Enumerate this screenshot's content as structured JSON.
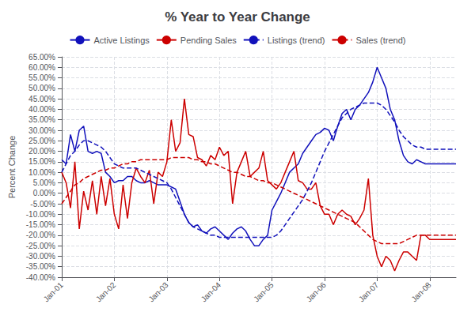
{
  "chart_data": {
    "type": "line",
    "title": "% Year to Year Change",
    "ylabel": "Percent Change",
    "categories": [
      "Jan-01",
      null,
      null,
      null,
      null,
      null,
      null,
      null,
      null,
      null,
      null,
      null,
      "Jan-02",
      null,
      null,
      null,
      null,
      null,
      null,
      null,
      null,
      null,
      null,
      null,
      "Jan-03",
      null,
      null,
      null,
      null,
      null,
      null,
      null,
      null,
      null,
      null,
      null,
      "Jan-04",
      null,
      null,
      null,
      null,
      null,
      null,
      null,
      null,
      null,
      null,
      null,
      "Jan-05",
      null,
      null,
      null,
      null,
      null,
      null,
      null,
      null,
      null,
      null,
      null,
      "Jan-06",
      null,
      null,
      null,
      null,
      null,
      null,
      null,
      null,
      null,
      null,
      null,
      "Jan-07",
      null,
      null,
      null,
      null,
      null,
      null,
      null,
      null,
      null,
      null,
      null,
      "Jan-08",
      null,
      null,
      null,
      null,
      null,
      null
    ],
    "series": [
      {
        "name": "Active Listings",
        "color": "#1111bb",
        "line_style": "solid",
        "values": [
          0.16,
          0.14,
          0.28,
          0.2,
          0.3,
          0.32,
          0.2,
          0.19,
          0.2,
          0.19,
          0.1,
          0.08,
          0.05,
          0.06,
          0.06,
          0.08,
          0.08,
          0.06,
          0.05,
          0.05,
          0.06,
          0.05,
          0.04,
          0.04,
          0.04,
          0.03,
          0.02,
          -0.04,
          -0.1,
          -0.14,
          -0.16,
          -0.15,
          -0.18,
          -0.19,
          -0.17,
          -0.16,
          -0.18,
          -0.2,
          -0.22,
          -0.19,
          -0.17,
          -0.16,
          -0.18,
          -0.22,
          -0.25,
          -0.25,
          -0.22,
          -0.2,
          -0.08,
          -0.04,
          0.0,
          0.05,
          0.1,
          0.12,
          0.14,
          0.19,
          0.22,
          0.25,
          0.28,
          0.29,
          0.31,
          0.3,
          0.25,
          0.32,
          0.38,
          0.4,
          0.35,
          0.4,
          0.42,
          0.45,
          0.48,
          0.53,
          0.6,
          0.55,
          0.5,
          0.4,
          0.35,
          0.25,
          0.18,
          0.15,
          0.14,
          0.16,
          0.15,
          0.14,
          0.14,
          0.14,
          0.14,
          0.14,
          0.14,
          0.14,
          0.14
        ]
      },
      {
        "name": "Pending Sales",
        "color": "#cc0000",
        "line_style": "solid",
        "values": [
          0.1,
          0.05,
          -0.07,
          0.15,
          -0.17,
          0.01,
          -0.08,
          0.06,
          -0.1,
          0.08,
          -0.06,
          0.07,
          -0.1,
          -0.17,
          0.04,
          -0.12,
          0.05,
          0.12,
          0.08,
          0.05,
          0.11,
          -0.05,
          0.1,
          0.08,
          0.15,
          0.35,
          0.2,
          0.24,
          0.45,
          0.28,
          0.27,
          0.17,
          0.16,
          0.13,
          0.18,
          0.16,
          0.22,
          0.18,
          0.2,
          -0.05,
          0.1,
          0.15,
          0.2,
          0.08,
          0.1,
          0.12,
          0.2,
          0.06,
          0.04,
          0.02,
          0.05,
          0.1,
          0.15,
          0.2,
          0.06,
          0.05,
          0.02,
          0.02,
          0.05,
          -0.06,
          -0.1,
          -0.1,
          -0.15,
          -0.1,
          -0.08,
          -0.1,
          -0.11,
          -0.15,
          -0.12,
          -0.08,
          0.07,
          -0.2,
          -0.3,
          -0.35,
          -0.3,
          -0.32,
          -0.37,
          -0.32,
          -0.28,
          -0.28,
          -0.3,
          -0.32,
          -0.2,
          -0.2,
          -0.22,
          -0.22,
          -0.22,
          -0.22,
          -0.22,
          -0.22,
          -0.22
        ]
      },
      {
        "name": "Listings (trend)",
        "color": "#1111bb",
        "line_style": "dashed",
        "values": [
          0.1,
          0.14,
          0.18,
          0.2,
          0.23,
          0.25,
          0.25,
          0.24,
          0.23,
          0.22,
          0.2,
          0.17,
          0.14,
          0.13,
          0.12,
          0.12,
          0.12,
          0.12,
          0.11,
          0.1,
          0.09,
          0.08,
          0.07,
          0.06,
          0.05,
          0.02,
          -0.02,
          -0.06,
          -0.1,
          -0.14,
          -0.16,
          -0.17,
          -0.18,
          -0.19,
          -0.2,
          -0.2,
          -0.21,
          -0.21,
          -0.21,
          -0.21,
          -0.21,
          -0.21,
          -0.21,
          -0.21,
          -0.21,
          -0.21,
          -0.21,
          -0.21,
          -0.21,
          -0.2,
          -0.18,
          -0.15,
          -0.12,
          -0.09,
          -0.06,
          -0.03,
          0.01,
          0.05,
          0.1,
          0.15,
          0.2,
          0.24,
          0.28,
          0.32,
          0.36,
          0.38,
          0.4,
          0.41,
          0.42,
          0.43,
          0.43,
          0.43,
          0.43,
          0.42,
          0.4,
          0.37,
          0.34,
          0.3,
          0.27,
          0.25,
          0.23,
          0.22,
          0.22,
          0.21,
          0.21,
          0.21,
          0.21,
          0.21,
          0.21,
          0.21,
          0.21
        ]
      },
      {
        "name": "Sales (trend)",
        "color": "#cc0000",
        "line_style": "dashed",
        "values": [
          -0.05,
          -0.02,
          0.01,
          0.04,
          0.05,
          0.07,
          0.08,
          0.09,
          0.1,
          0.11,
          0.11,
          0.12,
          0.12,
          0.13,
          0.14,
          0.14,
          0.15,
          0.15,
          0.16,
          0.16,
          0.16,
          0.16,
          0.16,
          0.16,
          0.16,
          0.17,
          0.17,
          0.17,
          0.17,
          0.17,
          0.16,
          0.16,
          0.15,
          0.15,
          0.14,
          0.14,
          0.13,
          0.12,
          0.11,
          0.1,
          0.1,
          0.09,
          0.08,
          0.08,
          0.07,
          0.06,
          0.06,
          0.05,
          0.05,
          0.04,
          0.03,
          0.02,
          0.01,
          0.0,
          -0.01,
          -0.02,
          -0.03,
          -0.04,
          -0.05,
          -0.06,
          -0.07,
          -0.08,
          -0.09,
          -0.1,
          -0.11,
          -0.12,
          -0.13,
          -0.14,
          -0.16,
          -0.18,
          -0.2,
          -0.22,
          -0.23,
          -0.24,
          -0.24,
          -0.24,
          -0.24,
          -0.24,
          -0.23,
          -0.22,
          -0.21,
          -0.2,
          -0.2,
          -0.2,
          -0.2,
          -0.2,
          -0.2,
          -0.2,
          -0.2,
          -0.2,
          -0.2
        ]
      }
    ],
    "ylim": [
      -0.4,
      0.65
    ],
    "yticks": [
      {
        "value": -0.4,
        "label": "-40.00%"
      },
      {
        "value": -0.35,
        "label": "-35.00%"
      },
      {
        "value": -0.3,
        "label": "-30.00%"
      },
      {
        "value": -0.25,
        "label": "-25.00%"
      },
      {
        "value": -0.2,
        "label": "-20.00%"
      },
      {
        "value": -0.15,
        "label": "-15.00%"
      },
      {
        "value": -0.1,
        "label": "-10.00%"
      },
      {
        "value": -0.05,
        "label": "-5.00%"
      },
      {
        "value": 0.0,
        "label": "0.00%"
      },
      {
        "value": 0.05,
        "label": "5.00%"
      },
      {
        "value": 0.1,
        "label": "10.00%"
      },
      {
        "value": 0.15,
        "label": "15.00%"
      },
      {
        "value": 0.2,
        "label": "20.00%"
      },
      {
        "value": 0.25,
        "label": "25.00%"
      },
      {
        "value": 0.3,
        "label": "30.00%"
      },
      {
        "value": 0.35,
        "label": "35.00%"
      },
      {
        "value": 0.4,
        "label": "40.00%"
      },
      {
        "value": 0.45,
        "label": "45.00%"
      },
      {
        "value": 0.5,
        "label": "50.00%"
      },
      {
        "value": 0.55,
        "label": "55.00%"
      },
      {
        "value": 0.6,
        "label": "60.00%"
      },
      {
        "value": 0.65,
        "label": "65.00%"
      }
    ],
    "grid": true,
    "legend": "top"
  }
}
